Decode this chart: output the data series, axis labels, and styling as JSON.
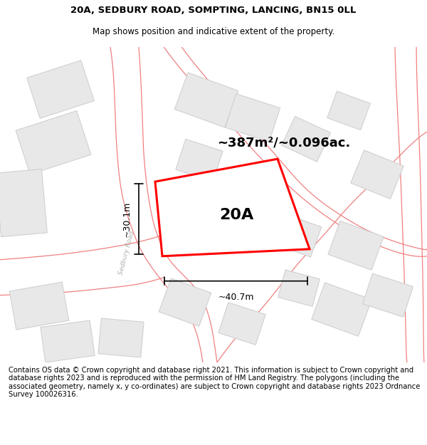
{
  "title_line1": "20A, SEDBURY ROAD, SOMPTING, LANCING, BN15 0LL",
  "title_line2": "Map shows position and indicative extent of the property.",
  "area_text": "~387m²/~0.096ac.",
  "label_20A": "20A",
  "dim_width": "~40.7m",
  "dim_height": "~30.1m",
  "road_label": "Sedbury Road",
  "footer_text": "Contains OS data © Crown copyright and database right 2021. This information is subject to Crown copyright and database rights 2023 and is reproduced with the permission of HM Land Registry. The polygons (including the associated geometry, namely x, y co-ordinates) are subject to Crown copyright and database rights 2023 Ordnance Survey 100026316.",
  "bg_color": "#ffffff",
  "building_fill": "#e8e8e8",
  "building_edge": "#cccccc",
  "road_line_color": "#f08080",
  "highlight_color": "#ff0000",
  "title_fontsize": 9.5,
  "subtitle_fontsize": 8.5,
  "footer_fontsize": 7.2,
  "area_fontsize": 13,
  "label_fontsize": 16,
  "dim_fontsize": 9
}
